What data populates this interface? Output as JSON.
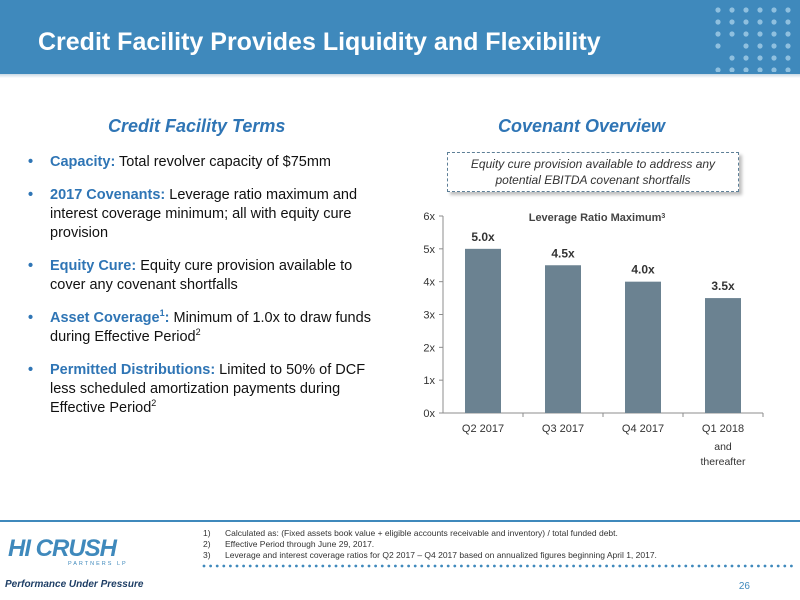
{
  "header": {
    "title": "Credit Facility Provides Liquidity and Flexibility"
  },
  "left": {
    "title": "Credit Facility Terms",
    "bullets": [
      {
        "term": "Capacity:",
        "text": " Total revolver capacity of $75mm",
        "sup": "",
        "tail": ""
      },
      {
        "term": "2017 Covenants:",
        "text": " Leverage ratio maximum and interest coverage minimum; all with equity cure provision",
        "sup": "",
        "tail": ""
      },
      {
        "term": "Equity Cure:",
        "text": " Equity cure provision available to cover any covenant shortfalls",
        "sup": "",
        "tail": ""
      },
      {
        "term": "Asset Coverage",
        "term_sup": "1",
        "term_colon": ":",
        "text": " Minimum of 1.0x to draw funds during Effective Period",
        "sup": "2",
        "tail": ""
      },
      {
        "term": "Permitted Distributions:",
        "text": " Limited to 50% of DCF less scheduled amortization payments during Effective Period",
        "sup": "2",
        "tail": ""
      }
    ]
  },
  "right": {
    "title": "Covenant Overview",
    "callout": "Equity cure provision available to address any potential EBITDA covenant shortfalls"
  },
  "chart_data": {
    "type": "bar",
    "title": "Leverage Ratio Maximum",
    "title_sup": "3",
    "categories": [
      "Q2 2017",
      "Q3 2017",
      "Q4 2017",
      "Q1 2018"
    ],
    "category_sublabels": [
      "",
      "",
      "",
      "and thereafter"
    ],
    "values": [
      5.0,
      4.5,
      4.0,
      3.5
    ],
    "data_labels": [
      "5.0x",
      "4.5x",
      "4.0x",
      "3.5x"
    ],
    "y_ticks": [
      0,
      1,
      2,
      3,
      4,
      5,
      6
    ],
    "y_tick_labels": [
      "0x",
      "1x",
      "2x",
      "3x",
      "4x",
      "5x",
      "6x"
    ],
    "ylim": [
      0,
      6
    ],
    "xlabel": "",
    "ylabel": "",
    "grid": false,
    "bar_color": "#6b8291"
  },
  "footnotes": [
    {
      "num": "1)",
      "text": "Calculated as: (Fixed assets book value + eligible accounts receivable and inventory) / total funded debt."
    },
    {
      "num": "2)",
      "text": "Effective Period through June 29, 2017."
    },
    {
      "num": "3)",
      "text": "Leverage and interest coverage ratios for Q2 2017 – Q4 2017 based on annualized figures beginning April 1, 2017."
    }
  ],
  "footer": {
    "page_number": "26"
  },
  "logo": {
    "word": "HI CRUSH",
    "sub": "PARTNERS LP",
    "tagline": "Performance Under Pressure"
  },
  "colors": {
    "brand_blue": "#3f89bc",
    "accent_blue": "#2f75b5",
    "bar": "#6b8291"
  }
}
